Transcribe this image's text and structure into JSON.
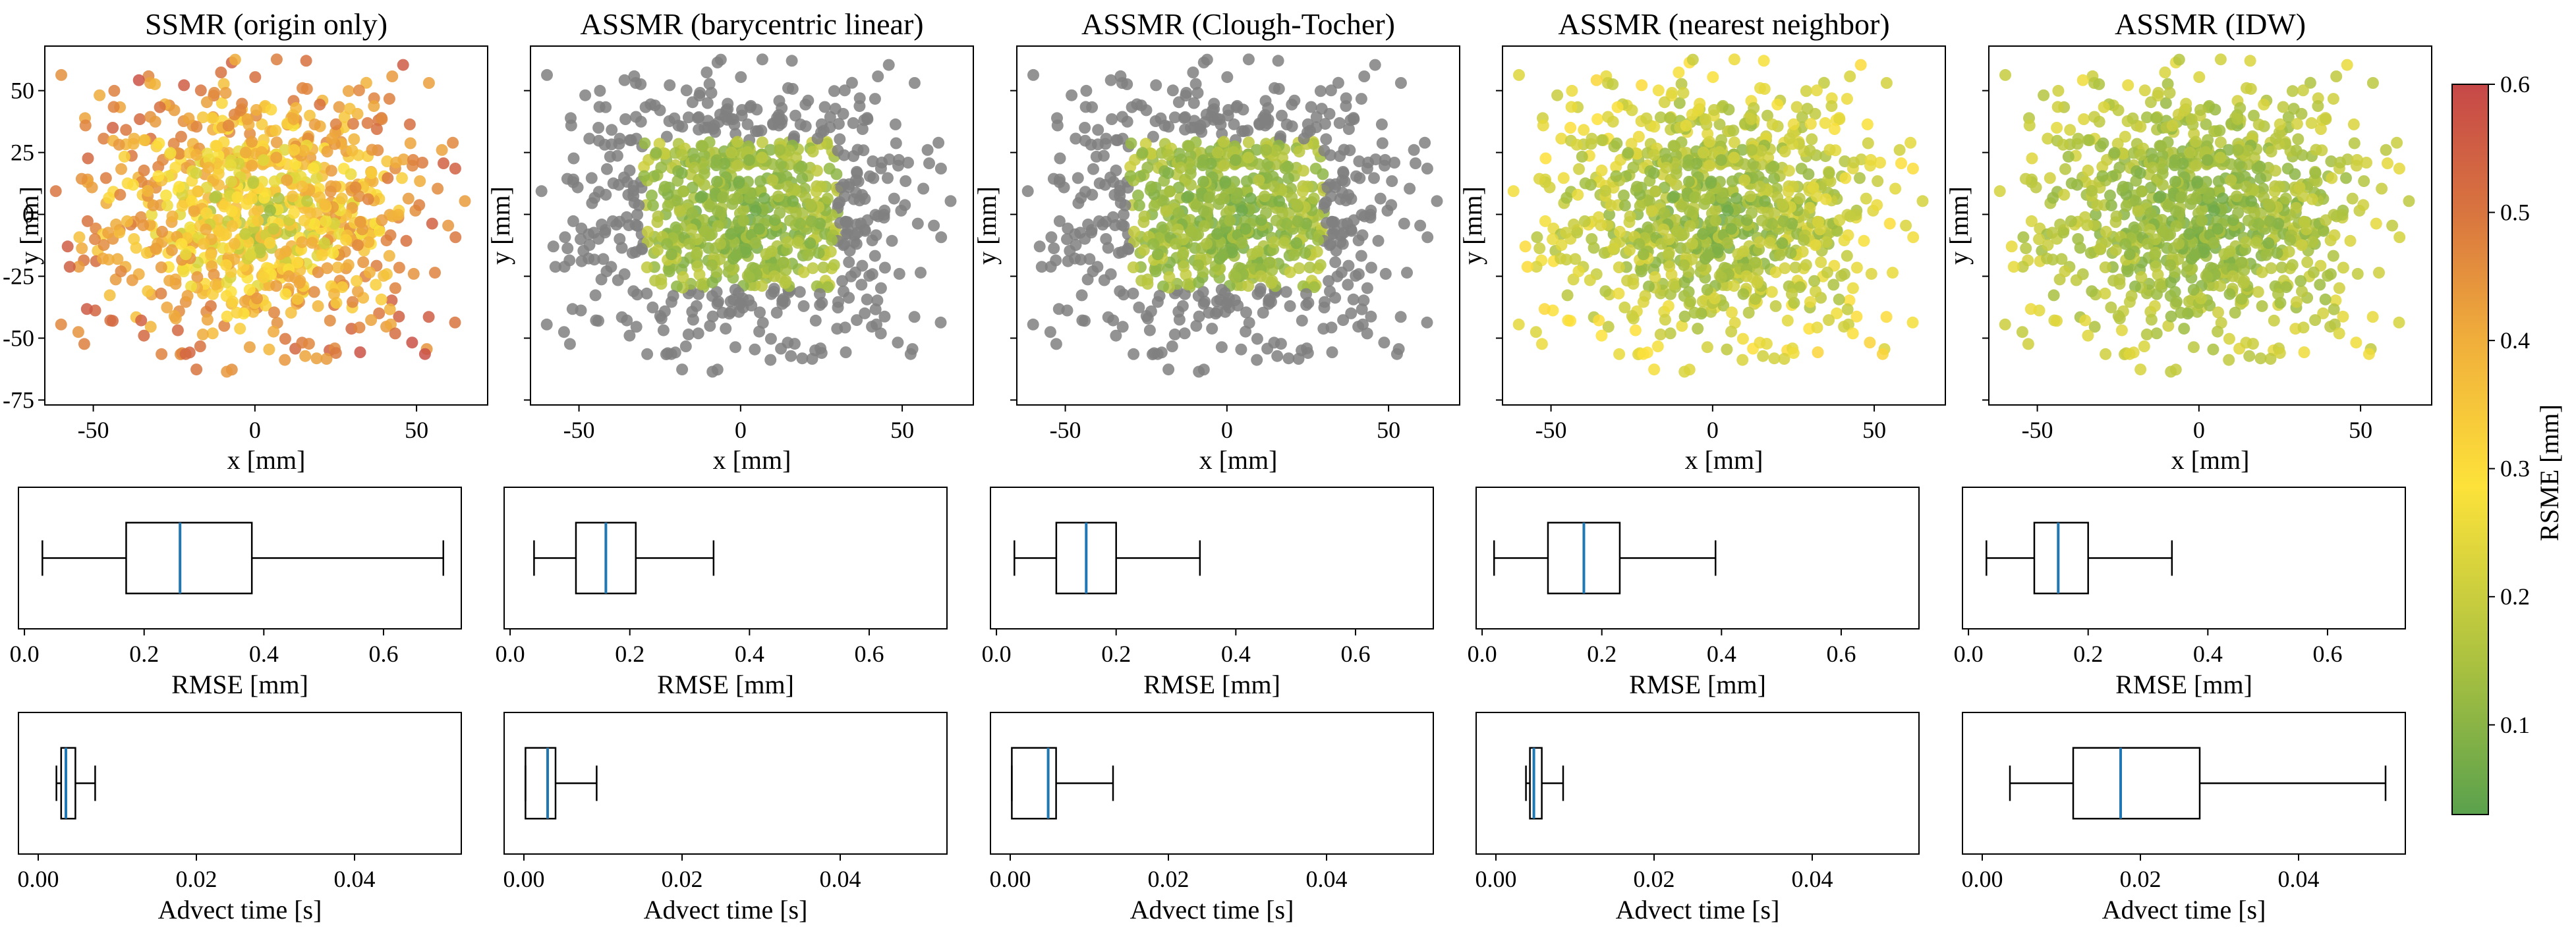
{
  "chart_data": [
    {
      "type": "scatter",
      "title": "SSMR (origin only)",
      "xlabel": "x [mm]",
      "ylabel": "y [mm]",
      "xlim": [
        -65,
        72
      ],
      "ylim": [
        -77,
        68
      ],
      "x_ticks": [
        "-50",
        "0",
        "50"
      ],
      "y_ticks": [
        "-75",
        "-50",
        "-25",
        "0",
        "25",
        "50"
      ],
      "color_mode": "all",
      "color_scale": [
        0.1,
        0.6
      ],
      "points_shown": 900
    },
    {
      "type": "scatter",
      "title": "ASSMR (barycentric linear)",
      "xlabel": "x [mm]",
      "ylabel": "y [mm]",
      "xlim": [
        -65,
        72
      ],
      "ylim": [
        -77,
        68
      ],
      "x_ticks": [
        "-50",
        "0",
        "50"
      ],
      "color_mode": "inner",
      "inner_region": {
        "x": [
          -30,
          30
        ],
        "y": [
          -30,
          30
        ]
      },
      "outside_color": "#808080",
      "color_scale": [
        0.05,
        0.25
      ],
      "points_shown": 900
    },
    {
      "type": "scatter",
      "title": "ASSMR (Clough-Tocher)",
      "xlabel": "x [mm]",
      "ylabel": "y [mm]",
      "xlim": [
        -65,
        72
      ],
      "ylim": [
        -77,
        68
      ],
      "x_ticks": [
        "-50",
        "0",
        "50"
      ],
      "color_mode": "inner",
      "inner_region": {
        "x": [
          -30,
          30
        ],
        "y": [
          -30,
          30
        ]
      },
      "outside_color": "#808080",
      "color_scale": [
        0.05,
        0.25
      ],
      "points_shown": 900
    },
    {
      "type": "scatter",
      "title": "ASSMR (nearest neighbor)",
      "xlabel": "x [mm]",
      "ylabel": "y [mm]",
      "xlim": [
        -65,
        72
      ],
      "ylim": [
        -77,
        68
      ],
      "x_ticks": [
        "-50",
        "0",
        "50"
      ],
      "color_mode": "all",
      "color_scale": [
        0.05,
        0.3
      ],
      "points_shown": 900
    },
    {
      "type": "scatter",
      "title": "ASSMR (IDW)",
      "xlabel": "x [mm]",
      "ylabel": "y [mm]",
      "xlim": [
        -65,
        72
      ],
      "ylim": [
        -77,
        68
      ],
      "x_ticks": [
        "-50",
        "0",
        "50"
      ],
      "color_mode": "all",
      "color_scale": [
        0.05,
        0.25
      ],
      "points_shown": 900
    },
    {
      "type": "box",
      "name": "SSMR (origin only)",
      "xlabel": "RMSE [mm]",
      "xlim": [
        -0.01,
        0.73
      ],
      "x_ticks": [
        "0.0",
        "0.2",
        "0.4",
        "0.6"
      ],
      "whisker_low": 0.03,
      "q1": 0.17,
      "median": 0.26,
      "q3": 0.38,
      "whisker_high": 0.7
    },
    {
      "type": "box",
      "name": "ASSMR (barycentric linear)",
      "xlabel": "RMSE [mm]",
      "xlim": [
        -0.01,
        0.73
      ],
      "x_ticks": [
        "0.0",
        "0.2",
        "0.4",
        "0.6"
      ],
      "whisker_low": 0.04,
      "q1": 0.11,
      "median": 0.16,
      "q3": 0.21,
      "whisker_high": 0.34
    },
    {
      "type": "box",
      "name": "ASSMR (Clough-Tocher)",
      "xlabel": "RMSE [mm]",
      "xlim": [
        -0.01,
        0.73
      ],
      "x_ticks": [
        "0.0",
        "0.2",
        "0.4",
        "0.6"
      ],
      "whisker_low": 0.03,
      "q1": 0.1,
      "median": 0.15,
      "q3": 0.2,
      "whisker_high": 0.34
    },
    {
      "type": "box",
      "name": "ASSMR (nearest neighbor)",
      "xlabel": "RMSE [mm]",
      "xlim": [
        -0.01,
        0.73
      ],
      "x_ticks": [
        "0.0",
        "0.2",
        "0.4",
        "0.6"
      ],
      "whisker_low": 0.02,
      "q1": 0.11,
      "median": 0.17,
      "q3": 0.23,
      "whisker_high": 0.39
    },
    {
      "type": "box",
      "name": "ASSMR (IDW)",
      "xlabel": "RMSE [mm]",
      "xlim": [
        -0.01,
        0.73
      ],
      "x_ticks": [
        "0.0",
        "0.2",
        "0.4",
        "0.6"
      ],
      "whisker_low": 0.03,
      "q1": 0.11,
      "median": 0.15,
      "q3": 0.2,
      "whisker_high": 0.34
    },
    {
      "type": "box",
      "name": "SSMR (origin only)",
      "xlabel": "Advect time [s]",
      "xlim": [
        -0.0025,
        0.0535
      ],
      "x_ticks": [
        "0.00",
        "0.02",
        "0.04"
      ],
      "whisker_low": 0.0023,
      "q1": 0.0029,
      "median": 0.0035,
      "q3": 0.0047,
      "whisker_high": 0.0072
    },
    {
      "type": "box",
      "name": "ASSMR (barycentric linear)",
      "xlabel": "Advect time [s]",
      "xlim": [
        -0.0025,
        0.0535
      ],
      "x_ticks": [
        "0.00",
        "0.02",
        "0.04"
      ],
      "whisker_low": 0.0002,
      "q1": 0.0002,
      "median": 0.003,
      "q3": 0.004,
      "whisker_high": 0.0092
    },
    {
      "type": "box",
      "name": "ASSMR (Clough-Tocher)",
      "xlabel": "Advect time [s]",
      "xlim": [
        -0.0025,
        0.0535
      ],
      "x_ticks": [
        "0.00",
        "0.02",
        "0.04"
      ],
      "whisker_low": 0.0002,
      "q1": 0.0002,
      "median": 0.0048,
      "q3": 0.0058,
      "whisker_high": 0.013
    },
    {
      "type": "box",
      "name": "ASSMR (nearest neighbor)",
      "xlabel": "Advect time [s]",
      "xlim": [
        -0.0025,
        0.0535
      ],
      "x_ticks": [
        "0.00",
        "0.02",
        "0.04"
      ],
      "whisker_low": 0.0038,
      "q1": 0.0043,
      "median": 0.0048,
      "q3": 0.0058,
      "whisker_high": 0.0085
    },
    {
      "type": "box",
      "name": "ASSMR (IDW)",
      "xlabel": "Advect time [s]",
      "xlim": [
        -0.0025,
        0.0535
      ],
      "x_ticks": [
        "0.00",
        "0.02",
        "0.04"
      ],
      "whisker_low": 0.0035,
      "q1": 0.0115,
      "median": 0.0175,
      "q3": 0.0275,
      "whisker_high": 0.051
    },
    {
      "type": "colorbar",
      "label": "RSME [mm]",
      "range": [
        0.03,
        0.6
      ],
      "ticks": [
        "0.1",
        "0.2",
        "0.3",
        "0.4",
        "0.5",
        "0.6"
      ],
      "colormap": [
        "#5aa14d",
        "#a8c040",
        "#fde23a",
        "#f0ae3b",
        "#d9763f",
        "#c64848"
      ]
    }
  ]
}
